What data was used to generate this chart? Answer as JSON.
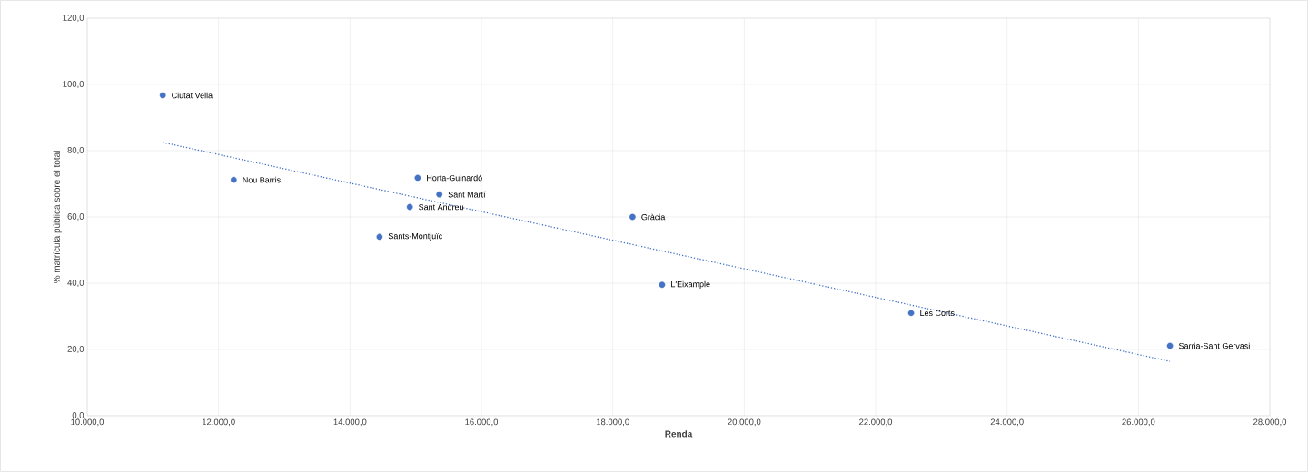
{
  "chart_data": {
    "type": "scatter",
    "xlabel": "Renda",
    "ylabel": "% matrícula pública sobre el total",
    "xlim": [
      10000,
      28000
    ],
    "ylim": [
      0,
      120
    ],
    "xticks": [
      {
        "value": 10000,
        "label": "10.000,0"
      },
      {
        "value": 12000,
        "label": "12.000,0"
      },
      {
        "value": 14000,
        "label": "14.000,0"
      },
      {
        "value": 16000,
        "label": "16.000,0"
      },
      {
        "value": 18000,
        "label": "18.000,0"
      },
      {
        "value": 20000,
        "label": "20.000,0"
      },
      {
        "value": 22000,
        "label": "22.000,0"
      },
      {
        "value": 24000,
        "label": "24.000,0"
      },
      {
        "value": 26000,
        "label": "26.000,0"
      },
      {
        "value": 28000,
        "label": "28.000,0"
      }
    ],
    "yticks": [
      {
        "value": 0,
        "label": "0,0"
      },
      {
        "value": 20,
        "label": "20,0"
      },
      {
        "value": 40,
        "label": "40,0"
      },
      {
        "value": 60,
        "label": "60,0"
      },
      {
        "value": 80,
        "label": "80,0"
      },
      {
        "value": 100,
        "label": "100,0"
      },
      {
        "value": 120,
        "label": "120,0"
      }
    ],
    "grid": true,
    "series": [
      {
        "type": "scatter",
        "marker": "circle",
        "color": "#4472c4",
        "x": [
          11150,
          12230,
          15030,
          15360,
          14910,
          14450,
          18300,
          18750,
          22540,
          26480
        ],
        "values": [
          96.7,
          71.2,
          71.8,
          66.8,
          63.0,
          54.0,
          60.0,
          39.5,
          31.0,
          21.1
        ]
      },
      {
        "type": "line",
        "color": "#4472c4",
        "line_style": "dotted",
        "marker": "none",
        "x": [
          11150,
          26480
        ],
        "values": [
          82.5,
          16.4
        ]
      }
    ],
    "annotations": [
      {
        "text": "Ciutat Vella",
        "x": 11150,
        "y": 96.7
      },
      {
        "text": "Nou Barris",
        "x": 12230,
        "y": 71.2
      },
      {
        "text": "Horta-Guinardó",
        "x": 15030,
        "y": 71.8
      },
      {
        "text": "Sant Martí",
        "x": 15360,
        "y": 66.8
      },
      {
        "text": "Sant Andreu",
        "x": 14910,
        "y": 63.0
      },
      {
        "text": "Sants-Montjuïc",
        "x": 14450,
        "y": 54.0
      },
      {
        "text": "Gràcia",
        "x": 18300,
        "y": 60.0
      },
      {
        "text": "L'Eixample",
        "x": 18750,
        "y": 39.5
      },
      {
        "text": "Les Corts",
        "x": 22540,
        "y": 31.0
      },
      {
        "text": "Sarria-Sant Gervasi",
        "x": 26480,
        "y": 21.1
      }
    ]
  }
}
